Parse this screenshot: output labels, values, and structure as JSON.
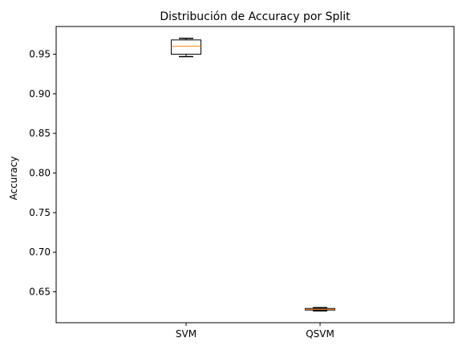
{
  "chart_data": {
    "type": "box",
    "title": "Distribución de Accuracy por Split",
    "xlabel": "",
    "ylabel": "Accuracy",
    "ylim": [
      0.611,
      0.985
    ],
    "yticks": [
      0.65,
      0.7,
      0.75,
      0.8,
      0.85,
      0.9,
      0.95
    ],
    "ytick_labels": [
      "0.65",
      "0.70",
      "0.75",
      "0.80",
      "0.85",
      "0.90",
      "0.95"
    ],
    "categories": [
      "SVM",
      "QSVM"
    ],
    "boxes": [
      {
        "category": "SVM",
        "whisker_low": 0.947,
        "q1": 0.95,
        "median": 0.96,
        "q3": 0.968,
        "whisker_high": 0.97
      },
      {
        "category": "QSVM",
        "whisker_low": 0.626,
        "q1": 0.627,
        "median": 0.628,
        "q3": 0.629,
        "whisker_high": 0.63
      }
    ],
    "colors": {
      "box": "#000000",
      "median": "#ff7f0e"
    },
    "grid": false,
    "legend": "none"
  }
}
